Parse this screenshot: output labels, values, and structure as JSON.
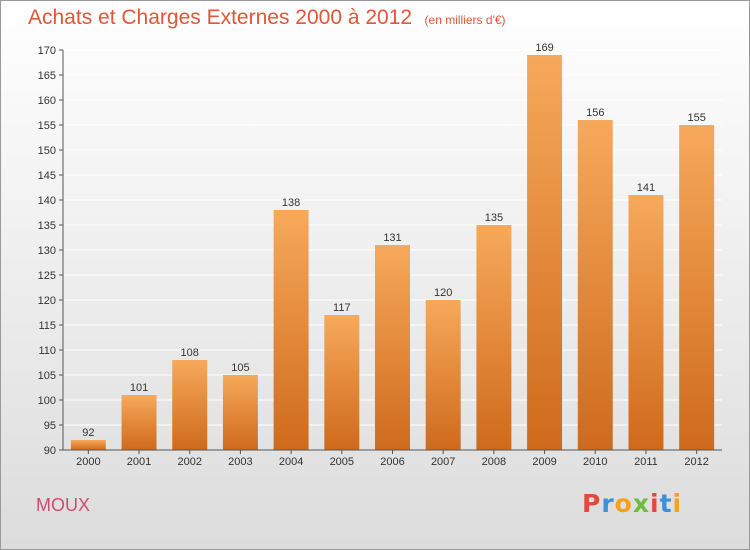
{
  "header": {
    "title": "Achats et Charges Externes 2000 à 2012",
    "subtitle": "(en milliers d'€)"
  },
  "footer": {
    "commune": "MOUX",
    "logo": {
      "text": "Proxiti",
      "colors": [
        "#e24b3b",
        "#3d8fd8",
        "#f2a31b",
        "#6cbf3a",
        "#e24b3b",
        "#3d8fd8",
        "#f2a31b"
      ]
    }
  },
  "colors": {
    "bar_light": "#f7a95a",
    "bar_dark": "#cf6a1c",
    "grid": "#ffffff",
    "title": "#e0563a"
  },
  "chart_data": {
    "type": "bar",
    "title": "Achats et Charges Externes 2000 à 2012",
    "subtitle": "(en milliers d'€)",
    "categories": [
      "2000",
      "2001",
      "2002",
      "2003",
      "2004",
      "2005",
      "2006",
      "2007",
      "2008",
      "2009",
      "2010",
      "2011",
      "2012"
    ],
    "values": [
      92,
      101,
      108,
      105,
      138,
      117,
      131,
      120,
      135,
      169,
      156,
      141,
      155
    ],
    "data_labels": [
      "92",
      "101",
      "108",
      "105",
      "138",
      "117",
      "131",
      "120",
      "135",
      "169",
      "156",
      "141",
      "155"
    ],
    "ylim": [
      90,
      170
    ],
    "yticks": [
      90,
      95,
      100,
      105,
      110,
      115,
      120,
      125,
      130,
      135,
      140,
      145,
      150,
      155,
      160,
      165,
      170
    ],
    "grid": true,
    "legend": "none"
  }
}
